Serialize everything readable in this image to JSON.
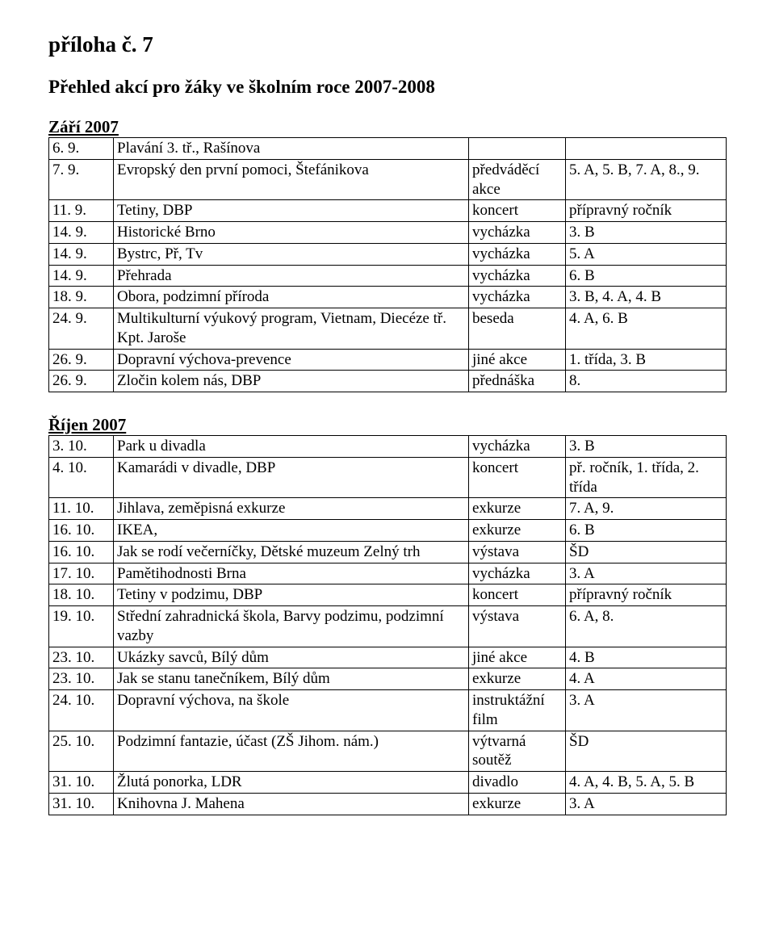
{
  "header": {
    "title": "příloha č. 7",
    "subtitle": "Přehled akcí pro žáky ve školním roce 2007-2008"
  },
  "sections": [
    {
      "heading": "Září 2007",
      "rows": [
        [
          "6. 9.",
          "Plavání 3. tř., Rašínova",
          "",
          ""
        ],
        [
          "7. 9.",
          "Evropský den první pomoci, Štefánikova",
          "předváděcí akce",
          "5. A, 5. B, 7. A, 8., 9."
        ],
        [
          "11. 9.",
          "Tetiny, DBP",
          "koncert",
          "přípravný ročník"
        ],
        [
          "14. 9.",
          "Historické Brno",
          "vycházka",
          "3. B"
        ],
        [
          "14. 9.",
          "Bystrc, Př, Tv",
          "vycházka",
          "5. A"
        ],
        [
          "14. 9.",
          "Přehrada",
          "vycházka",
          "6. B"
        ],
        [
          "18. 9.",
          "Obora, podzimní příroda",
          "vycházka",
          "3. B, 4. A, 4. B"
        ],
        [
          "24. 9.",
          "Multikulturní výukový program, Vietnam, Diecéze tř. Kpt. Jaroše",
          "beseda",
          "4. A, 6. B"
        ],
        [
          "26. 9.",
          "Dopravní výchova-prevence",
          "jiné akce",
          "1. třída, 3. B"
        ],
        [
          "26. 9.",
          "Zločin kolem nás, DBP",
          "přednáška",
          "8."
        ]
      ]
    },
    {
      "heading": "Říjen 2007",
      "rows": [
        [
          "3. 10.",
          "Park u divadla",
          "vycházka",
          "3. B"
        ],
        [
          "4. 10.",
          "Kamarádi v divadle, DBP",
          "koncert",
          "př. ročník, 1. třída, 2. třída"
        ],
        [
          "11. 10.",
          "Jihlava, zeměpisná exkurze",
          "exkurze",
          "7. A, 9."
        ],
        [
          "16. 10.",
          "IKEA,",
          "exkurze",
          "6. B"
        ],
        [
          "16. 10.",
          "Jak se rodí večerníčky, Dětské muzeum Zelný trh",
          "výstava",
          "ŠD"
        ],
        [
          "17. 10.",
          "Pamětihodnosti Brna",
          "vycházka",
          "3. A"
        ],
        [
          "18. 10.",
          "Tetiny v podzimu, DBP",
          "koncert",
          "přípravný ročník"
        ],
        [
          "19. 10.",
          "Střední zahradnická škola, Barvy podzimu, podzimní vazby",
          "výstava",
          "6. A, 8."
        ],
        [
          "23. 10.",
          "Ukázky savců, Bílý dům",
          "jiné akce",
          "4. B"
        ],
        [
          "23. 10.",
          "Jak se stanu tanečníkem, Bílý dům",
          "exkurze",
          "4. A"
        ],
        [
          "24. 10.",
          "Dopravní výchova, na škole",
          "instruktážní film",
          "3. A"
        ],
        [
          "25. 10.",
          "Podzimní fantazie, účast (ZŠ Jihom. nám.)",
          "výtvarná soutěž",
          "ŠD"
        ],
        [
          "31. 10.",
          "Žlutá ponorka, LDR",
          "divadlo",
          "4. A, 4. B, 5. A, 5. B"
        ],
        [
          "31. 10.",
          "Knihovna J. Mahena",
          "exkurze",
          "3. A"
        ]
      ]
    }
  ]
}
